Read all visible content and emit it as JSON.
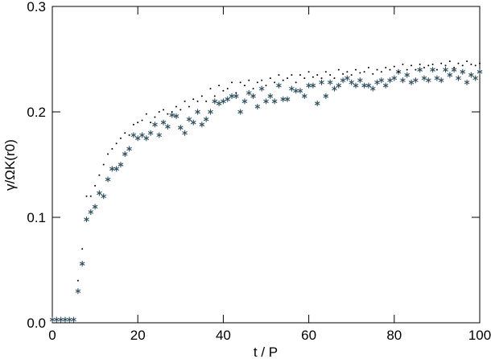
{
  "chart_data": {
    "type": "scatter",
    "xlabel": "t / P",
    "ylabel": "γ/ΩK(r0)",
    "xlim": [
      0,
      100
    ],
    "xticks": [
      0,
      20,
      40,
      60,
      80,
      100
    ],
    "ylim": [
      0,
      0.3
    ],
    "yticks": [
      {
        "value": 0,
        "label": "0.0"
      },
      0.1,
      0.2,
      0.3
    ],
    "x": [
      0,
      1,
      2,
      3,
      4,
      5,
      6,
      7,
      8,
      9,
      10,
      11,
      12,
      13,
      14,
      15,
      16,
      17,
      18,
      19,
      20,
      21,
      22,
      23,
      24,
      25,
      26,
      27,
      28,
      29,
      30,
      31,
      32,
      33,
      34,
      35,
      36,
      37,
      38,
      39,
      40,
      41,
      42,
      43,
      44,
      45,
      46,
      47,
      48,
      49,
      50,
      51,
      52,
      53,
      54,
      55,
      56,
      57,
      58,
      59,
      60,
      61,
      62,
      63,
      64,
      65,
      66,
      67,
      68,
      69,
      70,
      71,
      72,
      73,
      74,
      75,
      76,
      77,
      78,
      79,
      80,
      81,
      82,
      83,
      84,
      85,
      86,
      87,
      88,
      89,
      90,
      91,
      92,
      93,
      94,
      95,
      96,
      97,
      98,
      99,
      100
    ],
    "series": [
      {
        "marker": "asterisk",
        "color": "#2f4f5f",
        "values": [
          0.003,
          0.003,
          0.003,
          0.003,
          0.003,
          0.003,
          0.03,
          0.056,
          0.098,
          0.105,
          0.11,
          0.123,
          0.12,
          0.136,
          0.146,
          0.146,
          0.15,
          0.16,
          0.165,
          0.178,
          0.175,
          0.178,
          0.175,
          0.18,
          0.188,
          0.178,
          0.19,
          0.186,
          0.197,
          0.196,
          0.185,
          0.18,
          0.193,
          0.19,
          0.2,
          0.188,
          0.193,
          0.2,
          0.21,
          0.208,
          0.21,
          0.212,
          0.215,
          0.215,
          0.2,
          0.21,
          0.218,
          0.215,
          0.205,
          0.222,
          0.21,
          0.215,
          0.21,
          0.225,
          0.212,
          0.212,
          0.222,
          0.22,
          0.22,
          0.215,
          0.225,
          0.225,
          0.208,
          0.228,
          0.215,
          0.228,
          0.222,
          0.225,
          0.23,
          0.232,
          0.228,
          0.225,
          0.23,
          0.225,
          0.225,
          0.222,
          0.228,
          0.23,
          0.225,
          0.23,
          0.232,
          0.238,
          0.23,
          0.235,
          0.228,
          0.23,
          0.24,
          0.232,
          0.23,
          0.24,
          0.232,
          0.23,
          0.24,
          0.235,
          0.24,
          0.232,
          0.238,
          0.228,
          0.235,
          0.232,
          0.238
        ]
      },
      {
        "marker": "dot",
        "color": "#000000",
        "values": [
          null,
          null,
          null,
          null,
          null,
          null,
          0.04,
          0.07,
          0.12,
          0.12,
          0.13,
          0.14,
          0.15,
          0.16,
          0.165,
          0.17,
          0.175,
          0.18,
          0.178,
          0.188,
          0.19,
          0.192,
          0.198,
          0.19,
          0.195,
          0.2,
          0.202,
          0.198,
          0.2,
          0.205,
          0.202,
          0.21,
          0.205,
          0.212,
          0.21,
          0.215,
          0.21,
          0.222,
          0.215,
          0.225,
          0.22,
          0.222,
          0.228,
          0.218,
          0.228,
          0.225,
          0.23,
          0.222,
          0.228,
          0.23,
          0.225,
          0.232,
          0.228,
          0.235,
          0.23,
          0.232,
          0.235,
          0.228,
          0.235,
          0.232,
          0.238,
          0.233,
          0.235,
          0.232,
          0.238,
          0.235,
          0.232,
          0.24,
          0.236,
          0.238,
          0.235,
          0.24,
          0.237,
          0.238,
          0.242,
          0.236,
          0.24,
          0.238,
          0.242,
          0.24,
          0.243,
          0.238,
          0.245,
          0.24,
          0.244,
          0.24,
          0.245,
          0.242,
          0.244,
          0.245,
          0.24,
          0.246,
          0.244,
          0.248,
          0.242,
          0.246,
          0.244,
          0.248,
          0.245,
          0.244,
          0.246
        ]
      }
    ]
  }
}
